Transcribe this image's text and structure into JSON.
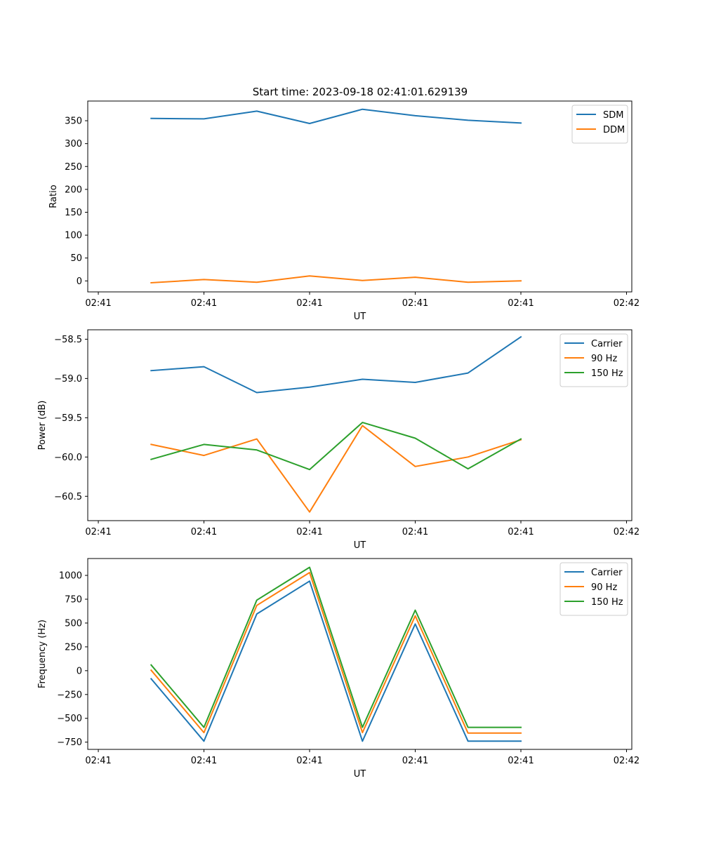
{
  "figure_title": "Start time: 2023-09-18 02:41:01.629139",
  "colors": {
    "blue": "#1f77b4",
    "orange": "#ff7f0e",
    "green": "#2ca02c"
  },
  "chart_data": [
    {
      "type": "line",
      "title": "Start time: 2023-09-18 02:41:01.629139",
      "xlabel": "UT",
      "ylabel": "Ratio",
      "x": [
        0.5,
        1.0,
        1.5,
        2.0,
        2.5,
        3.0,
        3.5,
        4.0
      ],
      "xlim": [
        -0.1,
        5.05
      ],
      "x_ticks": [
        0,
        1,
        2,
        3,
        4,
        5
      ],
      "x_tick_labels": [
        "02:41",
        "02:41",
        "02:41",
        "02:41",
        "02:41",
        "02:42"
      ],
      "ylim": [
        -24,
        393
      ],
      "y_ticks": [
        0,
        50,
        100,
        150,
        200,
        250,
        300,
        350
      ],
      "y_tick_labels": [
        "0",
        "50",
        "100",
        "150",
        "200",
        "250",
        "300",
        "350"
      ],
      "legend_position": "top-right",
      "series": [
        {
          "name": "SDM",
          "color": "#1f77b4",
          "values": [
            355,
            354,
            371,
            344,
            375,
            361,
            351,
            345
          ]
        },
        {
          "name": "DDM",
          "color": "#ff7f0e",
          "values": [
            -4,
            3,
            -3,
            11,
            1,
            8,
            -3,
            0
          ]
        }
      ]
    },
    {
      "type": "line",
      "title": "",
      "xlabel": "UT",
      "ylabel": "Power (dB)",
      "x": [
        0.5,
        1.0,
        1.5,
        2.0,
        2.5,
        3.0,
        3.5,
        4.0
      ],
      "xlim": [
        -0.1,
        5.05
      ],
      "x_ticks": [
        0,
        1,
        2,
        3,
        4,
        5
      ],
      "x_tick_labels": [
        "02:41",
        "02:41",
        "02:41",
        "02:41",
        "02:41",
        "02:42"
      ],
      "ylim": [
        -60.81,
        -58.38
      ],
      "y_ticks": [
        -60.5,
        -60.0,
        -59.5,
        -59.0,
        -58.5
      ],
      "y_tick_labels": [
        "−60.5",
        "−60.0",
        "−59.5",
        "−59.0",
        "−58.5"
      ],
      "legend_position": "top-right",
      "series": [
        {
          "name": "Carrier",
          "color": "#1f77b4",
          "values": [
            -58.9,
            -58.85,
            -59.18,
            -59.11,
            -59.01,
            -59.05,
            -58.93,
            -58.47
          ]
        },
        {
          "name": "90 Hz",
          "color": "#ff7f0e",
          "values": [
            -59.84,
            -59.98,
            -59.77,
            -60.7,
            -59.6,
            -60.12,
            -60.0,
            -59.78
          ]
        },
        {
          "name": "150 Hz",
          "color": "#2ca02c",
          "values": [
            -60.03,
            -59.84,
            -59.91,
            -60.16,
            -59.56,
            -59.76,
            -60.15,
            -59.77
          ]
        }
      ]
    },
    {
      "type": "line",
      "title": "",
      "xlabel": "UT",
      "ylabel": "Frequency (Hz)",
      "x": [
        0.5,
        1.0,
        1.5,
        2.0,
        2.5,
        3.0,
        3.5,
        4.0
      ],
      "xlim": [
        -0.1,
        5.05
      ],
      "x_ticks": [
        0,
        1,
        2,
        3,
        4,
        5
      ],
      "x_tick_labels": [
        "02:41",
        "02:41",
        "02:41",
        "02:41",
        "02:41",
        "02:42"
      ],
      "ylim": [
        -826,
        1177
      ],
      "y_ticks": [
        -750,
        -500,
        -250,
        0,
        250,
        500,
        750,
        1000
      ],
      "y_tick_labels": [
        "−750",
        "−500",
        "−250",
        "0",
        "250",
        "500",
        "750",
        "1000"
      ],
      "legend_position": "top-right",
      "series": [
        {
          "name": "Carrier",
          "color": "#1f77b4",
          "values": [
            -85,
            -740,
            595,
            940,
            -740,
            490,
            -740,
            -740
          ]
        },
        {
          "name": "90 Hz",
          "color": "#ff7f0e",
          "values": [
            5,
            -650,
            685,
            1030,
            -650,
            575,
            -655,
            -655
          ]
        },
        {
          "name": "150 Hz",
          "color": "#2ca02c",
          "values": [
            60,
            -595,
            740,
            1085,
            -595,
            635,
            -595,
            -595
          ]
        }
      ]
    }
  ]
}
